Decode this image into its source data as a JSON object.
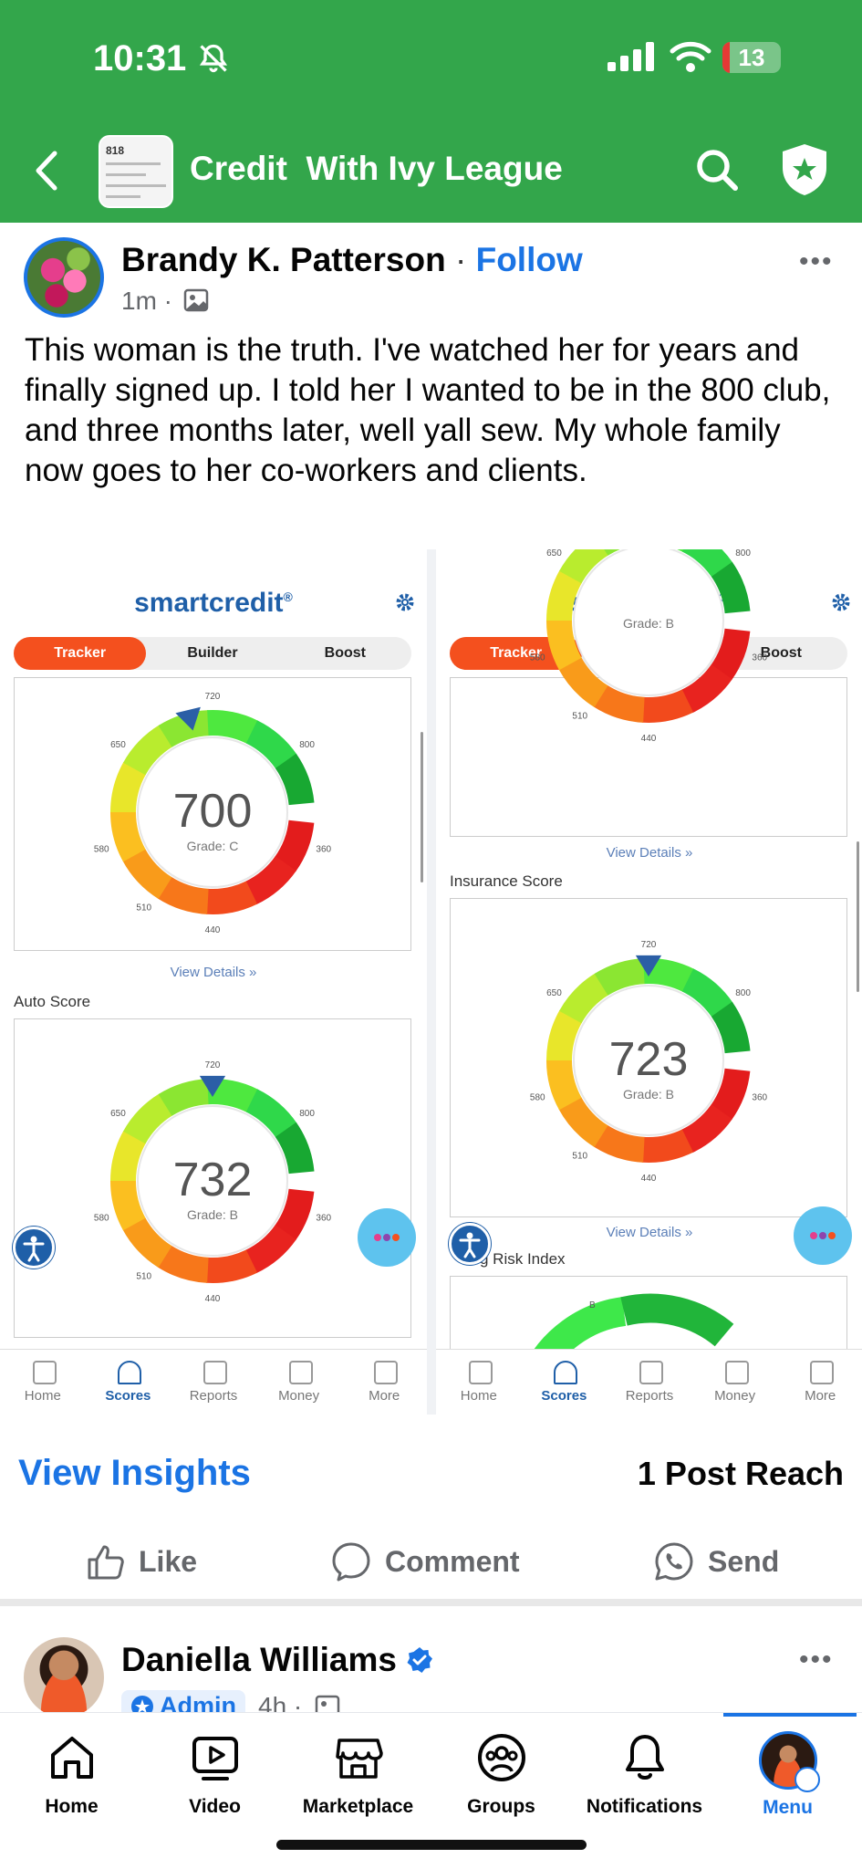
{
  "status": {
    "time": "10:31",
    "battery": "13"
  },
  "header": {
    "title": "Credit  With Ivy League",
    "thumb_text": "818"
  },
  "post": {
    "author": "Brandy K. Patterson",
    "separator": " · ",
    "follow": "Follow",
    "time": "1m ·",
    "more": "•••",
    "text": "This woman is the truth. I've watched her for years and finally signed up. I told her I wanted to be in the 800 club, and three months later, well yall sew. My whole family now goes to her co-workers and clients."
  },
  "screenshots": {
    "logo": "smartcredit",
    "logo_mark": "®",
    "tabs": [
      "Tracker",
      "Builder",
      "Boost"
    ],
    "nav": [
      "Home",
      "Scores",
      "Reports",
      "Money",
      "More"
    ],
    "view_details": "View Details »",
    "left": {
      "gauge1": {
        "score": "700",
        "grade": "Grade: C",
        "pointer_at": 700
      },
      "label2": "Auto Score",
      "gauge2": {
        "score": "732",
        "grade": "Grade: B",
        "pointer_at": 720
      }
    },
    "right": {
      "gauge1": {
        "grade": "Grade: B"
      },
      "label2": "Insurance Score",
      "gauge2": {
        "score": "723",
        "grade": "Grade: B",
        "pointer_at": 720
      },
      "label3": "g Risk Index",
      "label3_tick": "B"
    },
    "ticks": [
      "650",
      "720",
      "800",
      "580",
      "360",
      "510",
      "440"
    ]
  },
  "insights": {
    "view": "View Insights",
    "reach": "1 Post Reach"
  },
  "actions": {
    "like": "Like",
    "comment": "Comment",
    "send": "Send"
  },
  "post2": {
    "author": "Daniella Williams",
    "badge": "Admin",
    "time": "4h ·",
    "more": "•••"
  },
  "tabbar": [
    "Home",
    "Video",
    "Marketplace",
    "Groups",
    "Notifications",
    "Menu"
  ],
  "colors": {
    "brand_green": "#33a64b",
    "fb_blue": "#1b74e4",
    "tracker_orange": "#f4501e",
    "sc_blue": "#1f5fa8"
  }
}
